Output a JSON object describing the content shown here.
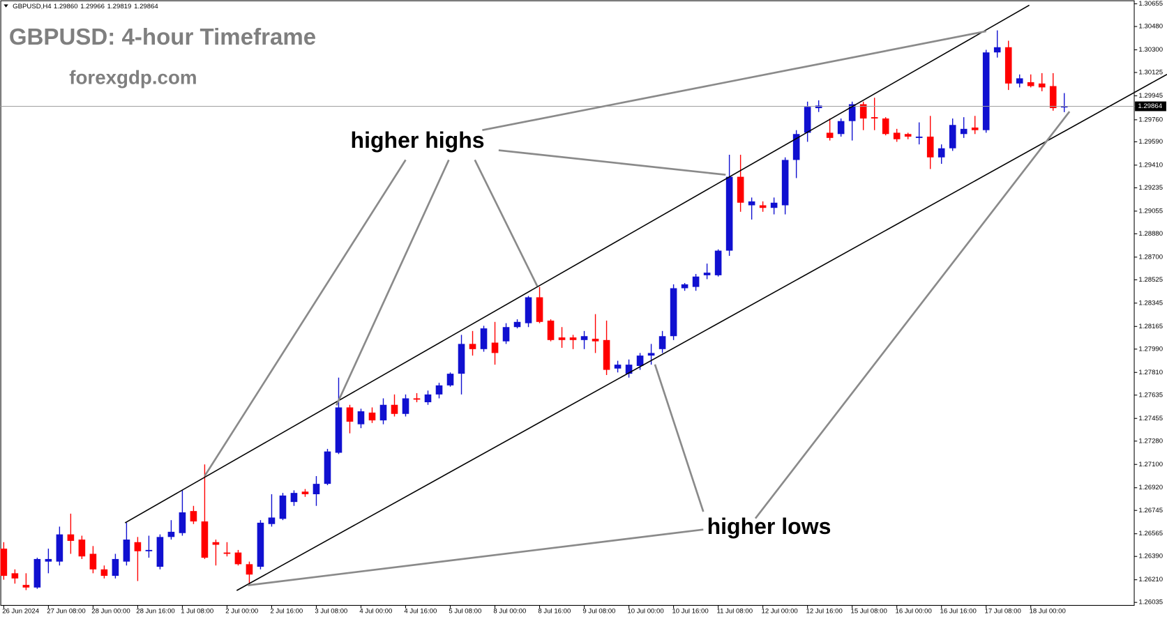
{
  "chart_data": {
    "type": "candlestick",
    "symbol": "GBPUSD,H4",
    "ohlc_labels": [
      "1.29860",
      "1.29966",
      "1.29819",
      "1.29864"
    ],
    "title": "GBPUSD: 4-hour Timeframe",
    "subtitle": "forexgdp.com",
    "annotations": [
      "higher highs",
      "higher lows"
    ],
    "up_color": "#1010d0",
    "down_color": "#ff0000",
    "price_line_color": "#a0a0a0",
    "categories": [
      "26 Jun 2024",
      null,
      null,
      null,
      "27 Jun 08:00",
      null,
      null,
      null,
      "28 Jun 00:00",
      null,
      null,
      null,
      "28 Jun 16:00",
      null,
      null,
      null,
      "1 Jul 08:00",
      null,
      null,
      null,
      "2 Jul 00:00",
      null,
      null,
      null,
      "2 Jul 16:00",
      null,
      null,
      null,
      "3 Jul 08:00",
      null,
      null,
      null,
      "4 Jul 00:00",
      null,
      null,
      null,
      "4 Jul 16:00",
      null,
      null,
      null,
      "5 Jul 08:00",
      null,
      null,
      null,
      "8 Jul 00:00",
      null,
      null,
      null,
      "8 Jul 16:00",
      null,
      null,
      null,
      "9 Jul 08:00",
      null,
      null,
      null,
      "10 Jul 00:00",
      null,
      null,
      null,
      "10 Jul 16:00",
      null,
      null,
      null,
      "11 Jul 08:00",
      null,
      null,
      null,
      "12 Jul 00:00",
      null,
      null,
      null,
      "12 Jul 16:00",
      null,
      null,
      null,
      "15 Jul 08:00",
      null,
      null,
      null,
      "16 Jul 00:00",
      null,
      null,
      null,
      "16 Jul 16:00",
      null,
      null,
      null,
      "17 Jul 08:00",
      null,
      null,
      null,
      "18 Jul 00:00",
      null,
      null,
      null
    ],
    "open": [
      1.2645,
      1.2626,
      1.2617,
      1.2615,
      1.2635,
      1.2635,
      1.2656,
      1.2652,
      1.2641,
      1.2629,
      1.2624,
      1.2635,
      1.265,
      1.2643,
      1.2631,
      1.2654,
      1.2657,
      1.2674,
      1.2666,
      1.265,
      1.2642,
      1.2642,
      1.2633,
      1.2631,
      1.2664,
      1.2668,
      1.2681,
      1.2689,
      1.2687,
      1.2695,
      1.2719,
      1.2754,
      1.2741,
      1.275,
      1.2744,
      1.2756,
      1.2749,
      1.2761,
      1.2758,
      1.2764,
      1.2771,
      1.278,
      1.2803,
      1.2799,
      1.2804,
      1.2805,
      1.2816,
      1.2819,
      1.2839,
      1.2821,
      1.2808,
      1.2808,
      1.2806,
      1.2807,
      1.2806,
      1.2784,
      1.278,
      1.2786,
      1.2794,
      1.2799,
      1.2809,
      1.2846,
      1.2847,
      1.2856,
      1.2856,
      1.2875,
      1.2932,
      1.291,
      1.291,
      1.2908,
      1.291,
      1.2945,
      1.2966,
      1.2985,
      1.2966,
      1.2965,
      1.2975,
      1.2988,
      1.2978,
      1.2977,
      1.2966,
      1.2965,
      1.2962,
      1.2963,
      1.2947,
      1.2954,
      1.2965,
      1.297,
      1.2968,
      1.3028,
      1.3032,
      1.3004,
      1.3005,
      1.3004,
      1.3002,
      1.2986
    ],
    "high": [
      1.265,
      1.2629,
      1.2626,
      1.2638,
      1.2645,
      1.2662,
      1.2672,
      1.2655,
      1.2647,
      1.2632,
      1.2641,
      1.2665,
      1.2654,
      1.2655,
      1.2656,
      1.2667,
      1.269,
      1.2678,
      1.271,
      1.2652,
      1.265,
      1.2644,
      1.2635,
      1.2667,
      1.2687,
      1.2688,
      1.269,
      1.2691,
      1.2701,
      1.2722,
      1.2777,
      1.2756,
      1.2753,
      1.2754,
      1.2761,
      1.2764,
      1.2764,
      1.2765,
      1.2767,
      1.2773,
      1.2781,
      1.281,
      1.2813,
      1.2817,
      1.282,
      1.2819,
      1.2822,
      1.284,
      1.2847,
      1.2822,
      1.2816,
      1.281,
      1.2813,
      1.2826,
      1.2821,
      1.279,
      1.2791,
      1.2796,
      1.2803,
      1.2813,
      1.2849,
      1.285,
      1.2857,
      1.2865,
      1.2876,
      1.2949,
      1.2949,
      1.2916,
      1.2913,
      1.2916,
      1.2947,
      1.2968,
      1.299,
      1.2991,
      1.2977,
      1.2977,
      1.299,
      1.299,
      1.2993,
      1.2978,
      1.2969,
      1.2966,
      1.2974,
      1.2979,
      1.2957,
      1.2977,
      1.2978,
      1.2979,
      1.303,
      1.3045,
      1.3037,
      1.3011,
      1.3011,
      1.3012,
      1.3012,
      1.29966
    ],
    "low": [
      1.2621,
      1.2618,
      1.2613,
      1.2614,
      1.2626,
      1.2632,
      1.2641,
      1.2637,
      1.2626,
      1.2622,
      1.2622,
      1.2632,
      1.262,
      1.2638,
      1.2629,
      1.2652,
      1.2655,
      1.2664,
      1.2637,
      1.2632,
      1.2639,
      1.2632,
      1.2618,
      1.2629,
      1.2662,
      1.2667,
      1.2678,
      1.2685,
      1.2678,
      1.2694,
      1.2718,
      1.2734,
      1.2738,
      1.2742,
      1.2741,
      1.2747,
      1.2747,
      1.2758,
      1.2756,
      1.2761,
      1.277,
      1.2764,
      1.2794,
      1.2797,
      1.2787,
      1.2803,
      1.2815,
      1.2816,
      1.2819,
      1.2805,
      1.28,
      1.2799,
      1.2799,
      1.2796,
      1.2779,
      1.2781,
      1.2777,
      1.2783,
      1.2787,
      1.2796,
      1.2806,
      1.2844,
      1.2844,
      1.2853,
      1.2855,
      1.2871,
      1.2905,
      1.2899,
      1.2905,
      1.2903,
      1.2903,
      1.2931,
      1.2959,
      1.2982,
      1.296,
      1.2963,
      1.296,
      1.2968,
      1.2968,
      1.2964,
      1.2959,
      1.2961,
      1.2957,
      1.2938,
      1.2942,
      1.2952,
      1.2962,
      1.2965,
      1.2966,
      1.3024,
      1.2999,
      1.3001,
      1.3001,
      1.2998,
      1.2983,
      1.29819
    ],
    "close": [
      1.2624,
      1.2622,
      1.2615,
      1.2637,
      1.2637,
      1.2656,
      1.2651,
      1.2639,
      1.2629,
      1.2624,
      1.2637,
      1.2652,
      1.2643,
      1.2644,
      1.2654,
      1.2658,
      1.2673,
      1.2666,
      1.2638,
      1.2648,
      1.2641,
      1.2633,
      1.2625,
      1.2665,
      1.2669,
      1.2686,
      1.2688,
      1.2687,
      1.2695,
      1.272,
      1.2754,
      1.2743,
      1.2751,
      1.2744,
      1.2756,
      1.2749,
      1.2761,
      1.276,
      1.2764,
      1.2771,
      1.278,
      1.2803,
      1.2799,
      1.2815,
      1.2796,
      1.2816,
      1.282,
      1.2839,
      1.282,
      1.2806,
      1.2806,
      1.2806,
      1.2809,
      1.2805,
      1.2783,
      1.2787,
      1.2787,
      1.2794,
      1.2796,
      1.2809,
      1.2846,
      1.2849,
      1.2855,
      1.2858,
      1.2875,
      1.2932,
      1.2912,
      1.2913,
      1.2908,
      1.2912,
      1.2945,
      1.2965,
      1.2986,
      1.2987,
      1.2962,
      1.2975,
      1.2988,
      1.2977,
      1.2977,
      1.2965,
      1.2961,
      1.2963,
      1.2963,
      1.2947,
      1.2954,
      1.2972,
      1.2969,
      1.2968,
      1.3028,
      1.3032,
      1.3004,
      1.3008,
      1.3002,
      1.3001,
      1.2985,
      1.29864
    ],
    "ylim": [
      1.26012,
      1.30673
    ],
    "yticks": [
      1.30655,
      {
        "value": 1.3048,
        "label": "1.30480"
      },
      {
        "value": 1.303,
        "label": "1.30300"
      },
      1.30125,
      1.29945,
      {
        "value": 1.2976,
        "label": "1.29760"
      },
      {
        "value": 1.2959,
        "label": "1.29590"
      },
      {
        "value": 1.2941,
        "label": "1.29410"
      },
      1.29235,
      1.29055,
      {
        "value": 1.2888,
        "label": "1.28880"
      },
      {
        "value": 1.287,
        "label": "1.28700"
      },
      1.28525,
      1.28345,
      1.28165,
      {
        "value": 1.2799,
        "label": "1.27990"
      },
      {
        "value": 1.2781,
        "label": "1.27810"
      },
      1.27635,
      1.27455,
      {
        "value": 1.2728,
        "label": "1.27280"
      },
      {
        "value": 1.271,
        "label": "1.27100"
      },
      {
        "value": 1.2692,
        "label": "1.26920"
      },
      1.26745,
      1.26565,
      {
        "value": 1.2639,
        "label": "1.26390"
      },
      {
        "value": 1.2621,
        "label": "1.26210"
      },
      1.26035
    ],
    "grid": false
  }
}
